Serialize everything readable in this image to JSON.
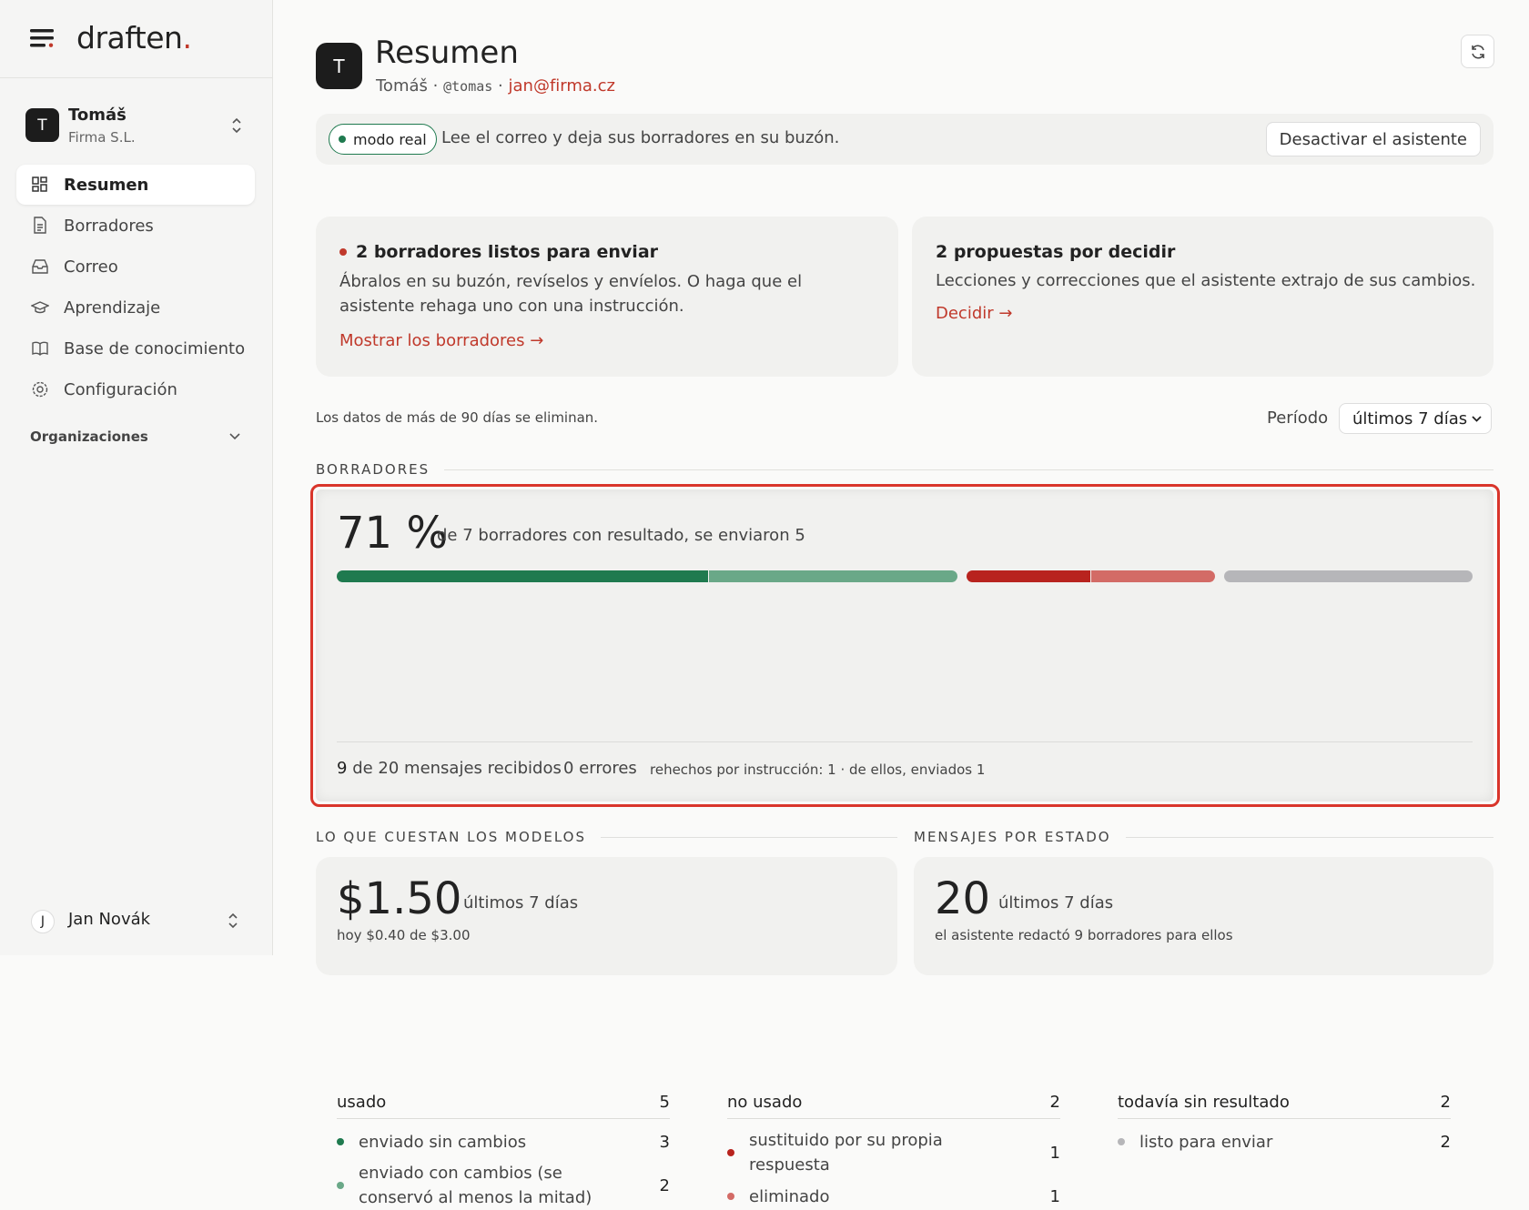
{
  "sidebar": {
    "logo": "draften",
    "logo_dot": ".",
    "account": {
      "avatar": "T",
      "name": "Tomáš",
      "org": "Firma S.L."
    },
    "nav": [
      "Resumen",
      "Borradores",
      "Correo",
      "Aprendizaje",
      "Base de conocimiento",
      "Configuración"
    ],
    "orgs_label": "Organizaciones",
    "user": {
      "avatar": "J",
      "name": "Jan Novák"
    }
  },
  "header": {
    "avatar": "T",
    "title": "Resumen",
    "name": "Tomáš",
    "separator": "·",
    "handle": "@tomas",
    "email": "jan@firma.cz"
  },
  "banner": {
    "badge": "modo real",
    "text": "Lee el correo y deja sus borradores en su buzón.",
    "button": "Desactivar el asistente"
  },
  "cards": [
    {
      "title": "2 borradores listos para enviar",
      "text": "Ábralos en su buzón, revíselos y envíelos. O haga que el asistente rehaga uno con una instrucción.",
      "link": "Mostrar los borradores →"
    },
    {
      "title": "2 propuestas por decidir",
      "text": "Lecciones y correcciones que el asistente extrajo de sus cambios.",
      "link": "Decidir →"
    }
  ],
  "retention": "Los datos de más de 90 días se eliminan.",
  "period": {
    "label": "Período",
    "value": "últimos 7 días"
  },
  "drafts": {
    "section": "BORRADORES",
    "percent": "71 %",
    "summary": "de 7 borradores con resultado, se enviaron 5",
    "groups": [
      {
        "label": "usado",
        "total": 5,
        "items": [
          {
            "label": "enviado sin cambios",
            "value": 3,
            "color": "#1f7a4f"
          },
          {
            "label": "enviado con cambios (se conservó al menos la mitad)",
            "value": 2,
            "color": "#6aa888"
          }
        ]
      },
      {
        "label": "no usado",
        "total": 2,
        "items": [
          {
            "label": "sustituido por su propia respuesta",
            "value": 1,
            "color": "#b8231e"
          },
          {
            "label": "eliminado",
            "value": 1,
            "color": "#d36b66"
          }
        ]
      },
      {
        "label": "todavía sin resultado",
        "total": 2,
        "items": [
          {
            "label": "listo para enviar",
            "value": 2,
            "color": "#b6b6b9"
          }
        ]
      }
    ],
    "footer": {
      "received_count": "9",
      "received_text": "de 20 mensajes recibidos",
      "errors": "0 errores",
      "redone": "rehechos por instrucción: 1 · de ellos, enviados 1"
    }
  },
  "costs": {
    "section": "LO QUE CUESTAN LOS MODELOS",
    "amount": "$1.50",
    "period": "últimos 7 días",
    "today": "hoy $0.40 de $3.00"
  },
  "messages": {
    "section": "MENSAJES POR ESTADO",
    "count": "20",
    "period": "últimos 7 días",
    "note": "el asistente redactó 9 borradores para ellos"
  }
}
